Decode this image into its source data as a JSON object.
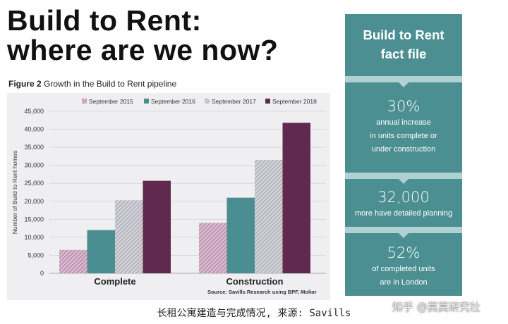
{
  "headline": {
    "line1": "Build to Rent:",
    "line2": "where are we now?"
  },
  "figure": {
    "label": "Figure 2",
    "caption": "Growth in the Build to Rent pipeline"
  },
  "chart_data": {
    "type": "bar",
    "categories": [
      "Complete",
      "Construction"
    ],
    "series": [
      {
        "name": "September 2015",
        "values": [
          6500,
          14000
        ]
      },
      {
        "name": "September 2016",
        "values": [
          12000,
          21000
        ]
      },
      {
        "name": "September 2017",
        "values": [
          20300,
          31500
        ]
      },
      {
        "name": "September 2018",
        "values": [
          25700,
          41800
        ]
      }
    ],
    "ylabel": "Number of Build to Rent homes",
    "xlabel": "",
    "ylim": [
      0,
      45000
    ],
    "yticks": [
      "0",
      "5,000",
      "10,000",
      "15,000",
      "20,000",
      "25,000",
      "30,000",
      "35,000",
      "40,000",
      "45,000"
    ],
    "legend_position": "top",
    "grid": true,
    "colors": [
      "#c498b4",
      "#4b8e91",
      "#b9b9c2",
      "#5f2a4d"
    ],
    "series_patterns": [
      "hatch",
      "solid",
      "hatch",
      "solid"
    ]
  },
  "source": "Source: Savills Research using BPF, Molior",
  "fact_file": {
    "title_line1": "Build to Rent",
    "title_line2": "fact file",
    "facts": [
      {
        "value": "30%",
        "text_lines": [
          "annual increase",
          "in units complete or",
          "under construction"
        ]
      },
      {
        "value": "32,000",
        "text_lines": [
          "more have detailed planning"
        ]
      },
      {
        "value": "52%",
        "text_lines": [
          "of completed units",
          "are in London"
        ]
      }
    ],
    "colors": {
      "panel": "#4c8f92",
      "band": "#b0d0d2"
    }
  },
  "bottom_caption": "长租公寓建造与完成情况, 来源: Savills",
  "watermark": "知乎 @莫莫研究社"
}
